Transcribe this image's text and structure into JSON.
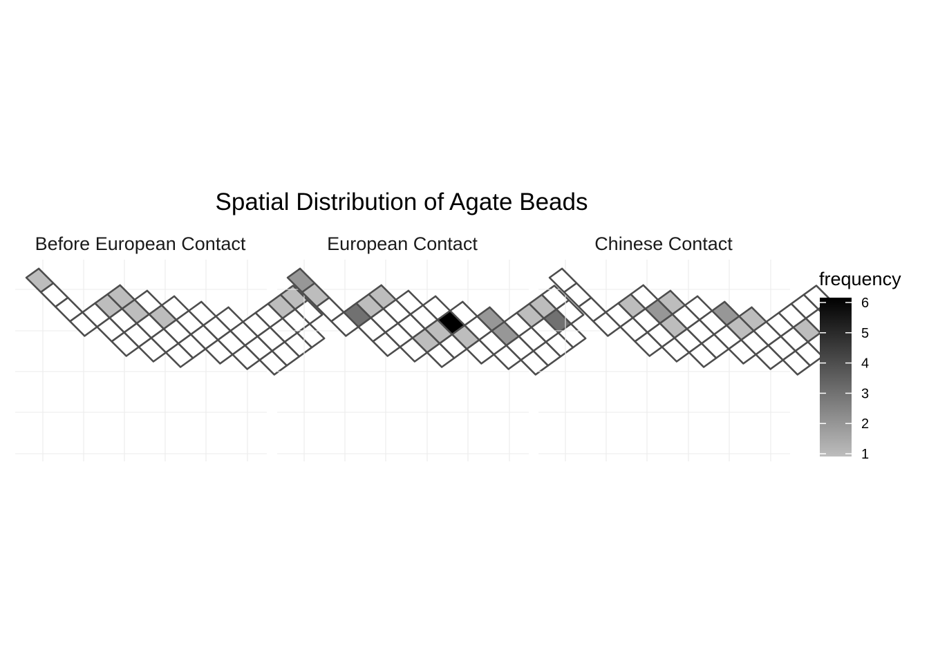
{
  "chart_data": {
    "type": "heatmap",
    "title": "Spatial Distribution of Agate Beads",
    "legend": {
      "title": "frequency",
      "ticks": [
        1,
        2,
        3,
        4,
        5,
        6
      ],
      "range": [
        1,
        6
      ],
      "low_color": "#bdbdbd",
      "high_color": "#000000",
      "empty_color": "#ffffff",
      "placement": "right"
    },
    "grid": true,
    "facets": [
      {
        "name": "Before European Contact",
        "filled": [
          [
            0,
            0,
            1
          ],
          [
            3,
            2,
            1
          ],
          [
            3,
            3,
            1
          ],
          [
            4,
            3,
            1
          ],
          [
            5,
            4,
            1
          ],
          [
            7,
            9,
            1
          ],
          [
            7,
            10,
            1
          ],
          [
            8,
            10,
            1
          ],
          [
            8,
            11,
            1
          ]
        ]
      },
      {
        "name": "European Contact",
        "filled": [
          [
            0,
            0,
            2
          ],
          [
            1,
            0,
            1
          ],
          [
            3,
            1,
            3
          ],
          [
            3,
            2,
            1
          ],
          [
            3,
            3,
            1
          ],
          [
            6,
            3,
            1
          ],
          [
            6,
            4,
            1
          ],
          [
            6,
            5,
            6
          ],
          [
            7,
            5,
            1
          ],
          [
            7,
            7,
            2
          ],
          [
            8,
            7,
            2
          ],
          [
            8,
            9,
            1
          ],
          [
            8,
            10,
            1
          ],
          [
            9,
            10,
            3
          ]
        ]
      },
      {
        "name": "Chinese Contact",
        "filled": [
          [
            3,
            2,
            1
          ],
          [
            4,
            3,
            2
          ],
          [
            4,
            4,
            1
          ],
          [
            5,
            3,
            1
          ],
          [
            6,
            6,
            2
          ],
          [
            7,
            6,
            1
          ],
          [
            7,
            7,
            1
          ],
          [
            9,
            9,
            1
          ]
        ]
      }
    ]
  }
}
